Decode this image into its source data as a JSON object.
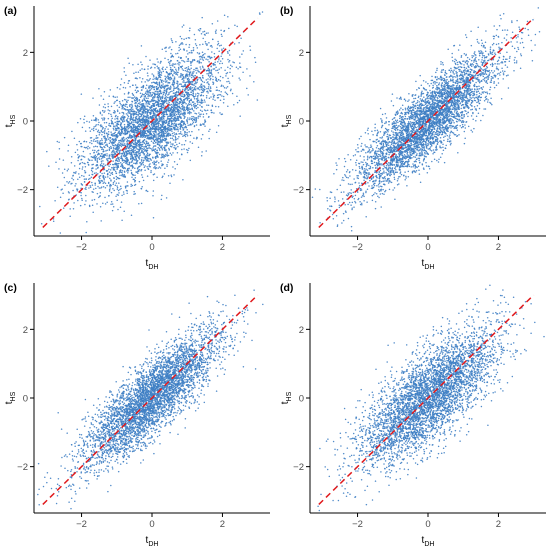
{
  "figure": {
    "background": "#ffffff",
    "point_color": "#3f7fc4",
    "reference_line_color": "#e0191c"
  },
  "chart_data": [
    {
      "panel_tag": "(a)",
      "type": "scatter",
      "xlabel": {
        "main": "t",
        "sub": "DH"
      },
      "ylabel": {
        "main": "t",
        "sub": "HS"
      },
      "xlim": [
        -3.35,
        3.35
      ],
      "ylim": [
        -3.35,
        3.35
      ],
      "xticks": [
        -2,
        0,
        2
      ],
      "yticks": [
        -2,
        0,
        2
      ],
      "xtick_labels": [
        "−2",
        "0",
        "2"
      ],
      "ytick_labels": [
        "−2",
        "0",
        "2"
      ],
      "reference_line": {
        "style": "dashed",
        "slope": 1,
        "intercept": 0,
        "x": [
          -3.1,
          3.0
        ]
      },
      "series": [
        {
          "n_points": 4200,
          "x_mean": 0,
          "x_sd": 1,
          "y_mean": 0,
          "y_sd": 1,
          "correlation": 0.68
        }
      ],
      "grid": false
    },
    {
      "panel_tag": "(b)",
      "type": "scatter",
      "xlabel": {
        "main": "t",
        "sub": "DH"
      },
      "ylabel": {
        "main": "t",
        "sub": "HS"
      },
      "xlim": [
        -3.35,
        3.35
      ],
      "ylim": [
        -3.35,
        3.35
      ],
      "xticks": [
        -2,
        0,
        2
      ],
      "yticks": [
        -2,
        0,
        2
      ],
      "xtick_labels": [
        "−2",
        "0",
        "2"
      ],
      "ytick_labels": [
        "−2",
        "0",
        "2"
      ],
      "reference_line": {
        "style": "dashed",
        "slope": 1,
        "intercept": 0,
        "x": [
          -3.1,
          3.0
        ]
      },
      "series": [
        {
          "n_points": 4200,
          "x_mean": 0,
          "x_sd": 1,
          "y_mean": 0,
          "y_sd": 1,
          "correlation": 0.85
        }
      ],
      "grid": false
    },
    {
      "panel_tag": "(c)",
      "type": "scatter",
      "xlabel": {
        "main": "t",
        "sub": "DH"
      },
      "ylabel": {
        "main": "t",
        "sub": "HS"
      },
      "xlim": [
        -3.35,
        3.35
      ],
      "ylim": [
        -3.35,
        3.35
      ],
      "xticks": [
        -2,
        0,
        2
      ],
      "yticks": [
        -2,
        0,
        2
      ],
      "xtick_labels": [
        "−2",
        "0",
        "2"
      ],
      "ytick_labels": [
        "−2",
        "0",
        "2"
      ],
      "reference_line": {
        "style": "dashed",
        "slope": 1,
        "intercept": 0,
        "x": [
          -3.1,
          3.0
        ]
      },
      "series": [
        {
          "n_points": 4200,
          "x_mean": 0,
          "x_sd": 1,
          "y_mean": 0,
          "y_sd": 1,
          "correlation": 0.85
        }
      ],
      "grid": false
    },
    {
      "panel_tag": "(d)",
      "type": "scatter",
      "xlabel": {
        "main": "t",
        "sub": "DH"
      },
      "ylabel": {
        "main": "t",
        "sub": "HS"
      },
      "xlim": [
        -3.35,
        3.35
      ],
      "ylim": [
        -3.35,
        3.35
      ],
      "xticks": [
        -2,
        0,
        2
      ],
      "yticks": [
        -2,
        0,
        2
      ],
      "xtick_labels": [
        "−2",
        "0",
        "2"
      ],
      "ytick_labels": [
        "−2",
        "0",
        "2"
      ],
      "reference_line": {
        "style": "dashed",
        "slope": 1,
        "intercept": 0,
        "x": [
          -3.1,
          3.0
        ]
      },
      "series": [
        {
          "n_points": 4200,
          "x_mean": 0,
          "x_sd": 1,
          "y_mean": 0,
          "y_sd": 1,
          "correlation": 0.75
        }
      ],
      "grid": false
    }
  ]
}
